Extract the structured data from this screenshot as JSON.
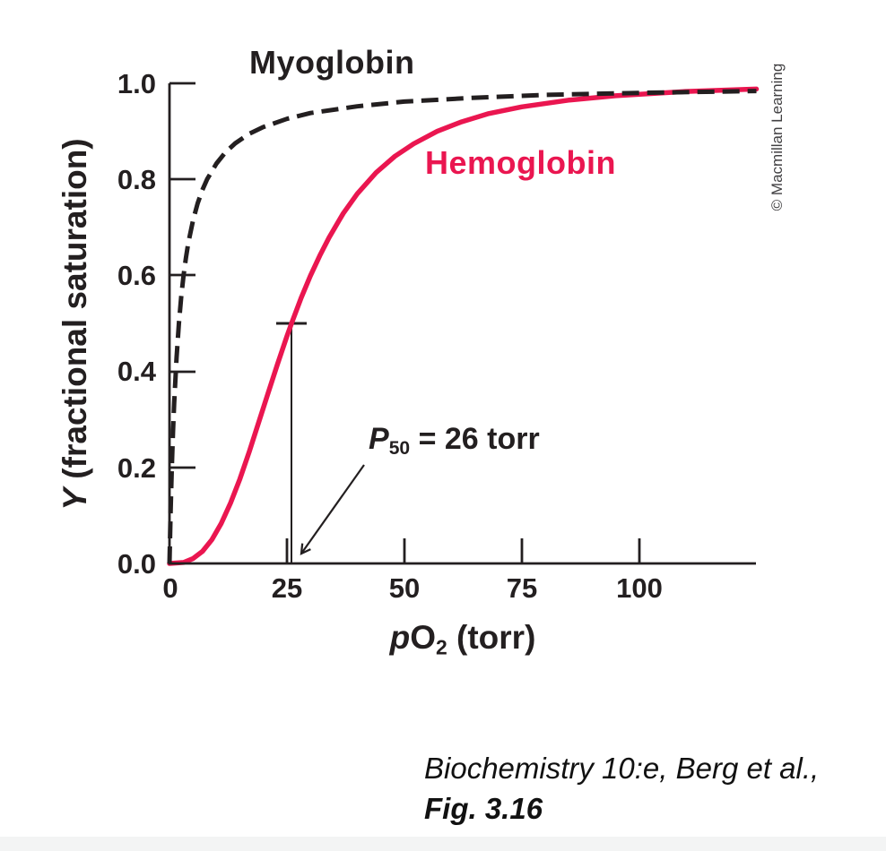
{
  "figure": {
    "copyright": "© Macmillan Learning",
    "caption_line1": "Biochemistry 10:e, Berg et al.,",
    "caption_line2": "Fig. 3.16"
  },
  "chart_data": {
    "type": "line",
    "title": "",
    "xlabel": {
      "plain": "pO2 (torr)",
      "prefix_italic": "p",
      "main": "O",
      "subscript": "2",
      "suffix": " (torr)"
    },
    "ylabel": {
      "plain": "Y (fractional saturation)",
      "prefix_italic": "Y",
      "suffix": " (fractional saturation)"
    },
    "xlim": [
      0,
      125
    ],
    "ylim": [
      0,
      1.0
    ],
    "grid": false,
    "legend_position": "inline-curve-labels",
    "x_ticks": {
      "values": [
        0,
        25,
        50,
        75,
        100
      ],
      "labels": [
        "0",
        "25",
        "50",
        "75",
        "100"
      ]
    },
    "y_ticks": {
      "values": [
        0.0,
        0.2,
        0.4,
        0.6,
        0.8,
        1.0
      ],
      "labels": [
        "0.0",
        "0.2",
        "0.4",
        "0.6",
        "0.8",
        "1.0"
      ]
    },
    "annotation": {
      "plain": "P50 = 26 torr",
      "italic": "P",
      "subscript": "50",
      "rest": " = 26 torr",
      "x_torr": 26,
      "y_fraction": 0.5
    },
    "series": [
      {
        "name": "Myoglobin",
        "line_style": "dashed",
        "color": "#231f20",
        "points": [
          [
            0,
            0
          ],
          [
            0.25,
            0.111
          ],
          [
            0.5,
            0.2
          ],
          [
            0.75,
            0.273
          ],
          [
            1,
            0.333
          ],
          [
            1.5,
            0.429
          ],
          [
            2,
            0.5
          ],
          [
            2.5,
            0.556
          ],
          [
            3,
            0.6
          ],
          [
            3.5,
            0.636
          ],
          [
            4,
            0.667
          ],
          [
            5,
            0.714
          ],
          [
            6,
            0.75
          ],
          [
            7,
            0.778
          ],
          [
            8,
            0.8
          ],
          [
            10,
            0.833
          ],
          [
            12,
            0.857
          ],
          [
            14,
            0.875
          ],
          [
            17,
            0.895
          ],
          [
            20,
            0.909
          ],
          [
            25,
            0.926
          ],
          [
            30,
            0.938
          ],
          [
            40,
            0.952
          ],
          [
            50,
            0.962
          ],
          [
            65,
            0.97
          ],
          [
            80,
            0.976
          ],
          [
            100,
            0.98
          ],
          [
            125,
            0.984
          ]
        ]
      },
      {
        "name": "Hemoglobin",
        "line_style": "solid",
        "color": "#ea1650",
        "points": [
          [
            0,
            0
          ],
          [
            3,
            0.002
          ],
          [
            5,
            0.01
          ],
          [
            7,
            0.025
          ],
          [
            9,
            0.049
          ],
          [
            11,
            0.083
          ],
          [
            13,
            0.126
          ],
          [
            15,
            0.176
          ],
          [
            17,
            0.233
          ],
          [
            19,
            0.294
          ],
          [
            21,
            0.355
          ],
          [
            23,
            0.415
          ],
          [
            25,
            0.473
          ],
          [
            26,
            0.5
          ],
          [
            28,
            0.552
          ],
          [
            30,
            0.599
          ],
          [
            32,
            0.641
          ],
          [
            34,
            0.679
          ],
          [
            37,
            0.729
          ],
          [
            40,
            0.77
          ],
          [
            44,
            0.814
          ],
          [
            48,
            0.848
          ],
          [
            52,
            0.874
          ],
          [
            57,
            0.9
          ],
          [
            62,
            0.919
          ],
          [
            68,
            0.937
          ],
          [
            75,
            0.951
          ],
          [
            85,
            0.965
          ],
          [
            95,
            0.974
          ],
          [
            110,
            0.983
          ],
          [
            125,
            0.988
          ]
        ]
      }
    ]
  }
}
